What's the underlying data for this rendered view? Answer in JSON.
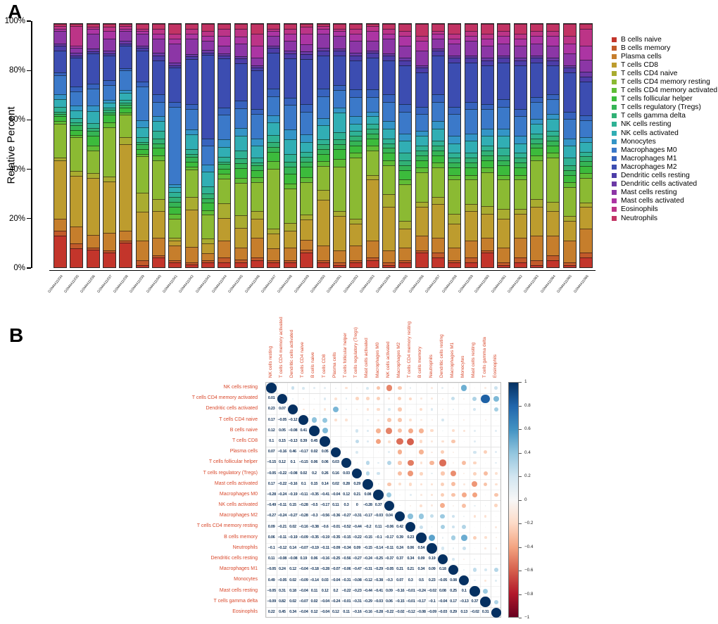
{
  "figure": {
    "panel_a_label": "A",
    "panel_b_label": "B"
  },
  "chart_data": [
    {
      "type": "bar",
      "stacked": true,
      "panel": "A",
      "title": "",
      "xlabel": "",
      "ylabel": "Relative Percent",
      "ylim": [
        0,
        100
      ],
      "yticks": [
        "0%",
        "20%",
        "40%",
        "60%",
        "80%",
        "100%"
      ],
      "legend_position": "right",
      "samples": [
        "GSM4411034",
        "GSM4411035",
        "GSM4411036",
        "GSM4411037",
        "GSM4411038",
        "GSM4411039",
        "GSM4411040",
        "GSM4411041",
        "GSM4411042",
        "GSM4411043",
        "GSM4411044",
        "GSM4411045",
        "GSM4411046",
        "GSM4411047",
        "GSM4411048",
        "GSM4411049",
        "GSM4411050",
        "GSM4411051",
        "GSM4411052",
        "GSM4411053",
        "GSM4411054",
        "GSM4411055",
        "GSM4411056",
        "GSM4411057",
        "GSM4411058",
        "GSM4411059",
        "GSM4411060",
        "GSM4411061",
        "GSM4411062",
        "GSM4411063",
        "GSM4411064",
        "GSM4411065",
        "GSM4411066"
      ],
      "cell_types": [
        {
          "name": "B cells naive",
          "color": "#C3352B"
        },
        {
          "name": "B cells memory",
          "color": "#C25A2A"
        },
        {
          "name": "Plasma cells",
          "color": "#C67E2C"
        },
        {
          "name": "T cells CD8",
          "color": "#BD9C2E"
        },
        {
          "name": "T cells CD4 naive",
          "color": "#A9AC30"
        },
        {
          "name": "T cells CD4 memory resting",
          "color": "#8BBA33"
        },
        {
          "name": "T cells CD4 memory activated",
          "color": "#5FBD36"
        },
        {
          "name": "T cells follicular helper",
          "color": "#3CBB3C"
        },
        {
          "name": "T cells regulatory (Tregs)",
          "color": "#35B455"
        },
        {
          "name": "T cells gamma delta",
          "color": "#31B175"
        },
        {
          "name": "NK cells resting",
          "color": "#2FB295"
        },
        {
          "name": "NK cells activated",
          "color": "#31AEB4"
        },
        {
          "name": "Monocytes",
          "color": "#3495C7"
        },
        {
          "name": "Macrophages M0",
          "color": "#3B79C9"
        },
        {
          "name": "Macrophages M1",
          "color": "#3763BE"
        },
        {
          "name": "Macrophages M2",
          "color": "#3C4DB1"
        },
        {
          "name": "Dendritic cells resting",
          "color": "#4C3DA8"
        },
        {
          "name": "Dendritic cells activated",
          "color": "#6C39A6"
        },
        {
          "name": "Mast cells resting",
          "color": "#8C36A6"
        },
        {
          "name": "Mast cells activated",
          "color": "#AC35A3"
        },
        {
          "name": "Eosinophils",
          "color": "#BC3487"
        },
        {
          "name": "Neutrophils",
          "color": "#C23364"
        }
      ],
      "values_note": "rows are samples, columns are cell_types, estimated relative percent",
      "values": [
        [
          13,
          2,
          5,
          24,
          1,
          14,
          1,
          2,
          1,
          1,
          2,
          3,
          2,
          8,
          1,
          9,
          2,
          1,
          5,
          1,
          1,
          1
        ],
        [
          8,
          2,
          7,
          21,
          2,
          14,
          1,
          2,
          2,
          1,
          2,
          3,
          2,
          6,
          2,
          12,
          1,
          1,
          2,
          1,
          8,
          1
        ],
        [
          7,
          1,
          5,
          23,
          2,
          9,
          2,
          4,
          2,
          1,
          2,
          5,
          2,
          7,
          2,
          12,
          1,
          1,
          6,
          2,
          1,
          1
        ],
        [
          6,
          1,
          7,
          21,
          2,
          20,
          2,
          3,
          1,
          1,
          1,
          2,
          1,
          6,
          2,
          10,
          1,
          1,
          5,
          3,
          2,
          1
        ],
        [
          10,
          1,
          4,
          35,
          3,
          9,
          1,
          2,
          1,
          1,
          1,
          3,
          1,
          8,
          1,
          9,
          1,
          1,
          4,
          1,
          1,
          1
        ],
        [
          1,
          2,
          8,
          12,
          8,
          15,
          1,
          2,
          2,
          1,
          2,
          4,
          3,
          14,
          2,
          13,
          1,
          1,
          5,
          1,
          1,
          2
        ],
        [
          4,
          1,
          7,
          11,
          5,
          16,
          2,
          3,
          2,
          2,
          3,
          4,
          2,
          6,
          3,
          14,
          2,
          1,
          6,
          2,
          2,
          2
        ],
        [
          2,
          1,
          6,
          2,
          1,
          8,
          2,
          3,
          2,
          2,
          2,
          2,
          1,
          32,
          2,
          14,
          1,
          1,
          8,
          2,
          2,
          4
        ],
        [
          1,
          1,
          6,
          15,
          5,
          11,
          1,
          2,
          2,
          1,
          2,
          6,
          2,
          8,
          2,
          18,
          1,
          1,
          6,
          2,
          2,
          2
        ],
        [
          2,
          1,
          3,
          4,
          2,
          10,
          2,
          3,
          2,
          2,
          3,
          6,
          3,
          8,
          3,
          35,
          1,
          1,
          4,
          2,
          2,
          3
        ],
        [
          2,
          2,
          7,
          9,
          6,
          10,
          2,
          2,
          2,
          1,
          2,
          4,
          3,
          10,
          3,
          20,
          1,
          1,
          3,
          4,
          3,
          2
        ],
        [
          2,
          1,
          5,
          8,
          5,
          13,
          2,
          4,
          2,
          2,
          3,
          6,
          3,
          8,
          3,
          15,
          2,
          1,
          5,
          3,
          3,
          2
        ],
        [
          3,
          1,
          8,
          8,
          3,
          12,
          2,
          3,
          2,
          1,
          2,
          5,
          3,
          10,
          2,
          16,
          1,
          1,
          3,
          5,
          5,
          4
        ],
        [
          2,
          1,
          5,
          6,
          2,
          25,
          3,
          4,
          2,
          2,
          3,
          5,
          3,
          8,
          3,
          15,
          2,
          1,
          4,
          2,
          1,
          2
        ],
        [
          2,
          1,
          5,
          7,
          3,
          14,
          2,
          4,
          3,
          2,
          3,
          6,
          4,
          10,
          3,
          16,
          2,
          1,
          4,
          3,
          2,
          2
        ],
        [
          6,
          1,
          4,
          8,
          2,
          13,
          2,
          4,
          2,
          2,
          2,
          4,
          3,
          9,
          3,
          18,
          2,
          1,
          3,
          4,
          3,
          1
        ],
        [
          2,
          1,
          6,
          19,
          4,
          10,
          2,
          3,
          2,
          2,
          2,
          6,
          3,
          9,
          3,
          14,
          2,
          1,
          6,
          2,
          1,
          1
        ],
        [
          1,
          1,
          5,
          14,
          2,
          18,
          3,
          4,
          2,
          2,
          3,
          8,
          2,
          7,
          2,
          12,
          2,
          1,
          5,
          2,
          1,
          2
        ],
        [
          2,
          1,
          6,
          9,
          2,
          25,
          2,
          3,
          2,
          2,
          2,
          3,
          3,
          8,
          3,
          12,
          2,
          1,
          5,
          3,
          2,
          2
        ],
        [
          3,
          1,
          7,
          25,
          2,
          10,
          2,
          3,
          2,
          2,
          2,
          3,
          2,
          6,
          3,
          13,
          2,
          1,
          4,
          4,
          2,
          1
        ],
        [
          1,
          1,
          5,
          18,
          5,
          12,
          2,
          3,
          2,
          2,
          2,
          4,
          3,
          8,
          3,
          14,
          2,
          1,
          6,
          2,
          2,
          2
        ],
        [
          2,
          1,
          5,
          8,
          3,
          15,
          2,
          4,
          2,
          2,
          3,
          5,
          3,
          9,
          3,
          16,
          2,
          1,
          5,
          4,
          2,
          3
        ],
        [
          6,
          1,
          6,
          12,
          2,
          12,
          2,
          3,
          2,
          2,
          2,
          4,
          2,
          7,
          3,
          14,
          2,
          1,
          6,
          4,
          2,
          5
        ],
        [
          4,
          2,
          6,
          14,
          3,
          12,
          2,
          3,
          2,
          2,
          2,
          5,
          3,
          8,
          3,
          16,
          2,
          1,
          4,
          2,
          1,
          3
        ],
        [
          2,
          1,
          5,
          10,
          4,
          14,
          2,
          3,
          2,
          2,
          2,
          4,
          3,
          9,
          3,
          18,
          2,
          1,
          5,
          2,
          2,
          4
        ],
        [
          2,
          2,
          7,
          12,
          3,
          10,
          2,
          3,
          2,
          2,
          2,
          5,
          3,
          10,
          3,
          16,
          2,
          1,
          6,
          2,
          2,
          3
        ],
        [
          6,
          1,
          5,
          10,
          3,
          14,
          2,
          3,
          2,
          2,
          2,
          4,
          3,
          8,
          2,
          16,
          2,
          1,
          5,
          3,
          2,
          4
        ],
        [
          1,
          1,
          6,
          12,
          4,
          12,
          2,
          4,
          2,
          2,
          3,
          5,
          3,
          9,
          3,
          15,
          2,
          1,
          5,
          3,
          2,
          3
        ],
        [
          2,
          2,
          8,
          10,
          2,
          12,
          2,
          3,
          2,
          2,
          2,
          4,
          3,
          8,
          3,
          18,
          2,
          1,
          5,
          3,
          2,
          4
        ],
        [
          1,
          2,
          10,
          12,
          3,
          16,
          2,
          3,
          2,
          2,
          2,
          4,
          2,
          7,
          2,
          14,
          2,
          1,
          5,
          3,
          2,
          3
        ],
        [
          3,
          2,
          8,
          10,
          4,
          18,
          2,
          3,
          2,
          2,
          2,
          5,
          2,
          6,
          2,
          12,
          2,
          1,
          5,
          4,
          2,
          3
        ],
        [
          1,
          1,
          9,
          8,
          2,
          12,
          2,
          3,
          2,
          2,
          3,
          5,
          3,
          8,
          3,
          16,
          2,
          1,
          5,
          4,
          3,
          5
        ],
        [
          4,
          2,
          10,
          9,
          2,
          10,
          2,
          3,
          2,
          2,
          2,
          4,
          2,
          7,
          2,
          14,
          2,
          2,
          5,
          6,
          7,
          2
        ]
      ]
    },
    {
      "type": "heatmap",
      "subtype": "correlation-matrix",
      "panel": "B",
      "display": "circles upper triangle, numbers lower triangle",
      "label_color": "#D9492C",
      "labels": [
        "NK cells resting",
        "T cells CD4 memory activated",
        "Dendritic cells activated",
        "T cells CD4 naive",
        "B cells naive",
        "T cells CD8",
        "Plasma cells",
        "T cells follicular helper",
        "T cells regulatory (Tregs)",
        "Mast cells activated",
        "Macrophages M0",
        "NK cells activated",
        "Macrophages M2",
        "T cells CD4 memory resting",
        "B cells memory",
        "Neutrophils",
        "Dendritic cells resting",
        "Macrophages M1",
        "Monocytes",
        "Mast cells resting",
        "T cells gamma delta",
        "Eosinophils"
      ],
      "lower_triangle": [
        [],
        [
          "0.01"
        ],
        [
          "0.23",
          "0.07"
        ],
        [
          "0.17",
          "-0.05",
          "-0.12"
        ],
        [
          "0.12",
          "0.05",
          "-0.08",
          "0.41"
        ],
        [
          "0.1",
          "0.15",
          "-0.13",
          "0.39",
          "0.45"
        ],
        [
          "0.07",
          "-0.16",
          "0.46",
          "-0.17",
          "0.02",
          "0.05"
        ],
        [
          "-0.15",
          "0.12",
          "0.1",
          "-0.15",
          "0.06",
          "0.06",
          "0.03"
        ],
        [
          "-0.05",
          "-0.22",
          "-0.08",
          "0.02",
          "0.2",
          "0.26",
          "0.16",
          "0.03"
        ],
        [
          "0.17",
          "-0.22",
          "-0.16",
          "0.1",
          "0.15",
          "0.14",
          "0.02",
          "0.28",
          "0.29"
        ],
        [
          "-0.28",
          "-0.24",
          "-0.19",
          "-0.11",
          "-0.35",
          "-0.41",
          "-0.04",
          "0.12",
          "0.21",
          "0.08"
        ],
        [
          "-0.49",
          "-0.11",
          "0.15",
          "-0.28",
          "-0.5",
          "-0.17",
          "0.11",
          "0.3",
          "0",
          "-0.28",
          "0.37"
        ],
        [
          "-0.27",
          "-0.24",
          "-0.27",
          "-0.28",
          "-0.3",
          "-0.56",
          "-0.36",
          "-0.27",
          "-0.31",
          "-0.17",
          "-0.03",
          "0.04"
        ],
        [
          "0.09",
          "-0.21",
          "0.02",
          "-0.16",
          "-0.38",
          "-0.6",
          "-0.01",
          "-0.52",
          "-0.44",
          "-0.2",
          "0.11",
          "-0.06",
          "0.42"
        ],
        [
          "0.06",
          "-0.11",
          "-0.19",
          "-0.09",
          "-0.35",
          "-0.19",
          "-0.35",
          "-0.15",
          "-0.22",
          "-0.15",
          "-0.1",
          "-0.17",
          "0.39",
          "0.23"
        ],
        [
          "-0.1",
          "-0.12",
          "0.14",
          "-0.07",
          "-0.19",
          "-0.11",
          "-0.09",
          "-0.34",
          "0.09",
          "-0.15",
          "-0.14",
          "-0.11",
          "0.24",
          "0.06",
          "0.54"
        ],
        [
          "0.11",
          "-0.08",
          "-0.08",
          "0.19",
          "0.06",
          "-0.16",
          "-0.25",
          "-0.56",
          "-0.27",
          "-0.24",
          "-0.25",
          "-0.37",
          "0.37",
          "0.34",
          "0.09",
          "0.19"
        ],
        [
          "-0.05",
          "0.24",
          "0.12",
          "-0.04",
          "-0.18",
          "-0.28",
          "-0.07",
          "-0.06",
          "-0.47",
          "-0.31",
          "-0.29",
          "-0.05",
          "0.21",
          "0.21",
          "0.34",
          "0.09",
          "0.18"
        ],
        [
          "0.49",
          "-0.05",
          "0.02",
          "-0.09",
          "-0.14",
          "0.03",
          "-0.04",
          "-0.31",
          "-0.08",
          "-0.12",
          "-0.38",
          "-0.3",
          "0.07",
          "0.3",
          "0.5",
          "0.23",
          "-0.05",
          "0.08"
        ],
        [
          "-0.05",
          "0.31",
          "0.18",
          "-0.04",
          "0.11",
          "0.12",
          "0.2",
          "-0.22",
          "-0.23",
          "-0.44",
          "-0.41",
          "0.09",
          "-0.16",
          "-0.01",
          "-0.24",
          "-0.02",
          "0.08",
          "0.25",
          "0.1"
        ],
        [
          "-0.09",
          "0.82",
          "0.02",
          "-0.07",
          "0.02",
          "-0.04",
          "-0.24",
          "-0.01",
          "-0.31",
          "-0.29",
          "-0.03",
          "0.06",
          "-0.15",
          "-0.01",
          "-0.17",
          "-0.1",
          "-0.04",
          "0.17",
          "-0.13",
          "0.37"
        ],
        [
          "0.22",
          "0.45",
          "0.34",
          "-0.04",
          "0.12",
          "-0.04",
          "0.12",
          "0.11",
          "-0.16",
          "-0.16",
          "-0.28",
          "-0.22",
          "-0.02",
          "-0.12",
          "-0.08",
          "-0.09",
          "-0.03",
          "0.29",
          "0.13",
          "-0.02",
          "0.31"
        ]
      ],
      "colorbar": {
        "min": -1,
        "max": 1,
        "ticks": [
          "1",
          "0.8",
          "0.6",
          "0.4",
          "0.2",
          "0",
          "-0.2",
          "-0.4",
          "-0.6",
          "-0.8",
          "-1"
        ]
      }
    }
  ]
}
